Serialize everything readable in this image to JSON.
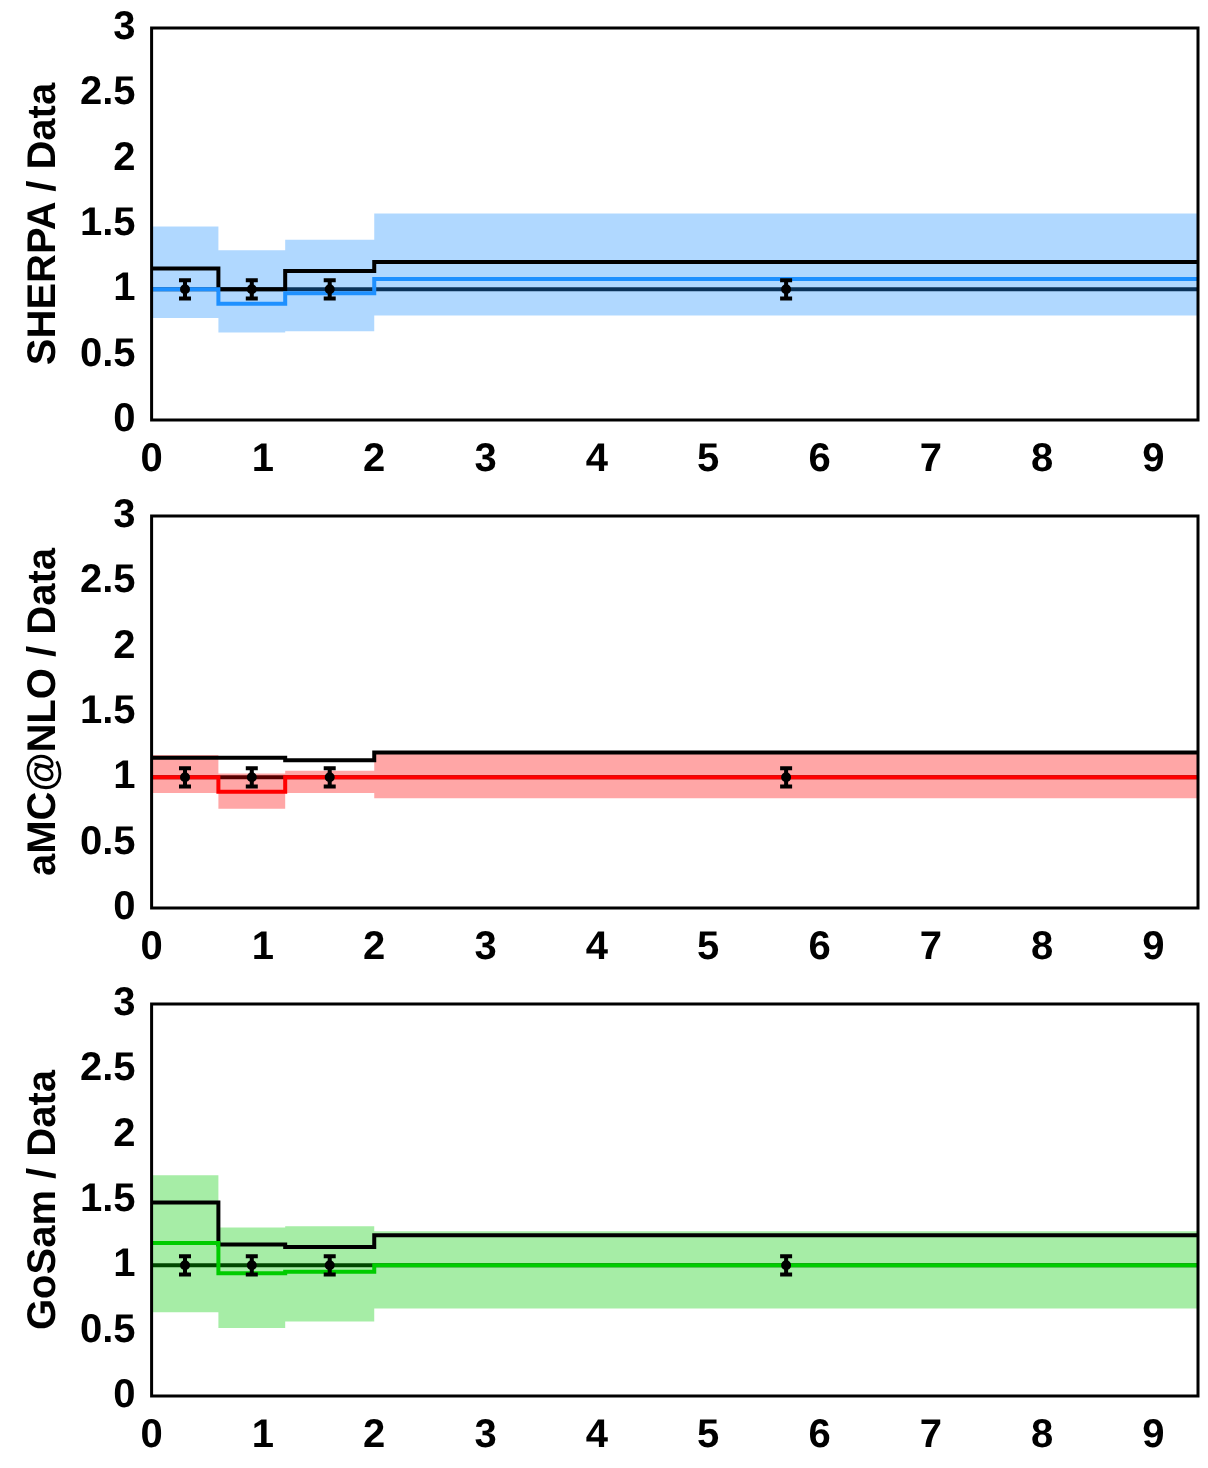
{
  "chart_data": [
    {
      "type": "step",
      "ylabel": "SHERPA / Data",
      "xlim": [
        0,
        9.4
      ],
      "xticks": [
        0,
        1,
        2,
        3,
        4,
        5,
        6,
        7,
        8,
        9
      ],
      "ylim": [
        0,
        3
      ],
      "yticks": [
        0,
        0.5,
        1,
        1.5,
        2,
        2.5,
        3
      ],
      "grid": false,
      "legend": false,
      "ref_lines": [
        {
          "axis": "y",
          "value": 1,
          "color": "#000000"
        }
      ],
      "series": [
        {
          "type": "step",
          "color": "#1e90ff",
          "x": [
            0,
            0.6,
            1.2,
            2.0,
            9.4
          ],
          "values": [
            1.0,
            0.89,
            0.97,
            1.08,
            1.08
          ],
          "lower": [
            0.78,
            0.67,
            0.68,
            0.8,
            0.8
          ],
          "upper": [
            1.48,
            1.3,
            1.38,
            1.58,
            1.58
          ]
        },
        {
          "type": "step",
          "color": "#000000",
          "x": [
            0,
            0.6,
            1.2,
            2.0,
            9.4
          ],
          "values": [
            1.16,
            1.0,
            1.14,
            1.21,
            1.21
          ]
        },
        {
          "type": "scatter",
          "color": "#000000",
          "marker": "circle",
          "x": [
            0.3,
            0.9,
            1.6,
            5.7
          ],
          "values": [
            1,
            1,
            1,
            1
          ],
          "errors": [
            0.07,
            0.07,
            0.07,
            0.07
          ]
        }
      ]
    },
    {
      "type": "step",
      "ylabel": "aMC@NLO / Data",
      "xlim": [
        0,
        9.4
      ],
      "xticks": [
        0,
        1,
        2,
        3,
        4,
        5,
        6,
        7,
        8,
        9
      ],
      "ylim": [
        0,
        3
      ],
      "yticks": [
        0,
        0.5,
        1,
        1.5,
        2,
        2.5,
        3
      ],
      "grid": false,
      "legend": false,
      "ref_lines": [
        {
          "axis": "y",
          "value": 1,
          "color": "#000000"
        }
      ],
      "series": [
        {
          "type": "step",
          "color": "#ff0000",
          "x": [
            0,
            0.6,
            1.2,
            2.0,
            9.4
          ],
          "values": [
            1.0,
            0.89,
            1.0,
            1.0,
            1.0
          ],
          "lower": [
            0.88,
            0.76,
            0.88,
            0.84,
            0.84
          ],
          "upper": [
            1.17,
            1.03,
            1.05,
            1.19,
            1.19
          ]
        },
        {
          "type": "step",
          "color": "#000000",
          "x": [
            0,
            0.6,
            1.2,
            2.0,
            9.4
          ],
          "values": [
            1.15,
            1.15,
            1.13,
            1.19,
            1.19
          ]
        },
        {
          "type": "scatter",
          "color": "#000000",
          "marker": "circle",
          "x": [
            0.3,
            0.9,
            1.6,
            5.7
          ],
          "values": [
            1,
            1,
            1,
            1
          ],
          "errors": [
            0.07,
            0.07,
            0.07,
            0.07
          ]
        }
      ]
    },
    {
      "type": "step",
      "ylabel": "GoSam / Data",
      "xlim": [
        0,
        9.4
      ],
      "xticks": [
        0,
        1,
        2,
        3,
        4,
        5,
        6,
        7,
        8,
        9
      ],
      "ylim": [
        0,
        3
      ],
      "yticks": [
        0,
        0.5,
        1,
        1.5,
        2,
        2.5,
        3
      ],
      "grid": false,
      "legend": false,
      "ref_lines": [
        {
          "axis": "y",
          "value": 1,
          "color": "#000000"
        }
      ],
      "series": [
        {
          "type": "step",
          "color": "#00cc00",
          "x": [
            0,
            0.6,
            1.2,
            2.0,
            9.4
          ],
          "values": [
            1.17,
            0.94,
            0.95,
            1.0,
            1.0
          ],
          "lower": [
            0.64,
            0.52,
            0.57,
            0.67,
            0.67
          ],
          "upper": [
            1.69,
            1.29,
            1.3,
            1.26,
            1.26
          ]
        },
        {
          "type": "step",
          "color": "#000000",
          "x": [
            0,
            0.6,
            1.2,
            2.0,
            9.4
          ],
          "values": [
            1.48,
            1.16,
            1.14,
            1.23,
            1.23
          ]
        },
        {
          "type": "scatter",
          "color": "#000000",
          "marker": "circle",
          "x": [
            0.3,
            0.9,
            1.6,
            5.7
          ],
          "values": [
            1,
            1,
            1,
            1
          ],
          "errors": [
            0.07,
            0.07,
            0.07,
            0.07
          ]
        }
      ]
    }
  ]
}
